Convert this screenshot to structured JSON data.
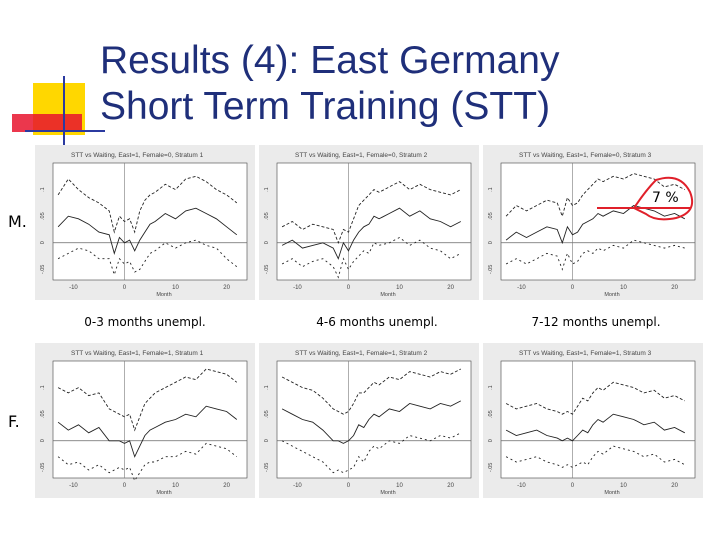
{
  "slide": {
    "title_line1": "Results (4): East Germany",
    "title_line2": "Short Term Training (STT)",
    "row_labels": [
      "M.",
      "F."
    ],
    "col_labels": [
      "0-3 months unempl.",
      "4-6 months unempl.",
      "7-12 months unempl."
    ],
    "annotation": "7 %",
    "colors": {
      "title": "#1f2f7a",
      "deco_yellow": "#ffd700",
      "deco_red": "#e8142e",
      "deco_blue": "#2b3aa0",
      "annotation_line": "#e0202a"
    }
  },
  "chart_data": [
    {
      "type": "line",
      "title": "STT vs Waiting, East=1, Female=0, Stratum 1",
      "xlabel": "Month",
      "ylabel": "",
      "xlim": [
        -14,
        24
      ],
      "ylim": [
        -0.07,
        0.15
      ],
      "yticks": [
        "-.05",
        "0",
        ".05",
        ".1"
      ],
      "xticks": [
        "-10",
        "0",
        "10",
        "20"
      ],
      "series": [
        {
          "x": [
            -13,
            -11,
            -9,
            -7,
            -5,
            -3,
            -2,
            -1,
            0,
            1,
            2,
            3,
            4,
            5,
            6,
            8,
            10,
            12,
            14,
            16,
            18,
            20,
            22
          ],
          "values": [
            0.03,
            0.05,
            0.045,
            0.035,
            0.02,
            0.015,
            -0.02,
            0.01,
            0.0,
            0.005,
            -0.015,
            0.005,
            0.02,
            0.035,
            0.04,
            0.055,
            0.045,
            0.06,
            0.065,
            0.055,
            0.045,
            0.03,
            0.015
          ]
        },
        {
          "x": [
            -13,
            -11,
            -9,
            -7,
            -5,
            -3,
            -2,
            -1,
            0,
            1,
            2,
            3,
            4,
            5,
            6,
            8,
            10,
            12,
            14,
            16,
            18,
            20,
            22
          ],
          "values": [
            0.09,
            0.12,
            0.1,
            0.085,
            0.075,
            0.06,
            0.02,
            0.05,
            0.04,
            0.045,
            0.02,
            0.06,
            0.08,
            0.09,
            0.095,
            0.11,
            0.1,
            0.12,
            0.125,
            0.115,
            0.1,
            0.09,
            0.075
          ]
        },
        {
          "x": [
            -13,
            -11,
            -9,
            -7,
            -5,
            -3,
            -2,
            -1,
            0,
            1,
            2,
            3,
            4,
            5,
            6,
            8,
            10,
            12,
            14,
            16,
            18,
            20,
            22
          ],
          "values": [
            -0.03,
            -0.02,
            -0.01,
            -0.015,
            -0.03,
            -0.03,
            -0.06,
            -0.03,
            -0.04,
            -0.035,
            -0.055,
            -0.05,
            -0.035,
            -0.02,
            -0.015,
            0.0,
            -0.01,
            0.0,
            0.005,
            -0.005,
            -0.01,
            -0.03,
            -0.045
          ]
        }
      ]
    },
    {
      "type": "line",
      "title": "STT vs Waiting, East=1, Female=0, Stratum 2",
      "xlabel": "Month",
      "ylabel": "",
      "xlim": [
        -14,
        24
      ],
      "ylim": [
        -0.07,
        0.15
      ],
      "yticks": [
        "-.05",
        "0",
        ".05",
        ".1"
      ],
      "xticks": [
        "-10",
        "0",
        "10",
        "20"
      ],
      "series": [
        {
          "x": [
            -13,
            -11,
            -9,
            -7,
            -5,
            -3,
            -2,
            -1,
            0,
            1,
            2,
            3,
            4,
            5,
            6,
            8,
            10,
            12,
            14,
            16,
            18,
            20,
            22
          ],
          "values": [
            -0.005,
            0.005,
            -0.01,
            -0.005,
            0.0,
            -0.01,
            -0.03,
            0.0,
            -0.015,
            0.005,
            0.02,
            0.03,
            0.035,
            0.05,
            0.045,
            0.055,
            0.065,
            0.05,
            0.06,
            0.045,
            0.04,
            0.03,
            0.04
          ]
        },
        {
          "x": [
            -13,
            -11,
            -9,
            -7,
            -5,
            -3,
            -2,
            -1,
            0,
            1,
            2,
            3,
            4,
            5,
            6,
            8,
            10,
            12,
            14,
            16,
            18,
            20,
            22
          ],
          "values": [
            0.03,
            0.04,
            0.025,
            0.035,
            0.03,
            0.025,
            0.0,
            0.025,
            0.02,
            0.045,
            0.07,
            0.08,
            0.09,
            0.1,
            0.095,
            0.105,
            0.115,
            0.1,
            0.11,
            0.1,
            0.095,
            0.09,
            0.1
          ]
        },
        {
          "x": [
            -13,
            -11,
            -9,
            -7,
            -5,
            -3,
            -2,
            -1,
            0,
            1,
            2,
            3,
            4,
            5,
            6,
            8,
            10,
            12,
            14,
            16,
            18,
            20,
            22
          ],
          "values": [
            -0.04,
            -0.03,
            -0.045,
            -0.035,
            -0.03,
            -0.045,
            -0.065,
            -0.03,
            -0.05,
            -0.035,
            -0.025,
            -0.015,
            -0.02,
            0.0,
            -0.005,
            0.0,
            0.01,
            -0.005,
            0.005,
            -0.01,
            -0.015,
            -0.03,
            -0.02
          ]
        }
      ]
    },
    {
      "type": "line",
      "title": "STT vs Waiting, East=1, Female=0, Stratum 3",
      "xlabel": "Month",
      "ylabel": "",
      "xlim": [
        -14,
        24
      ],
      "ylim": [
        -0.07,
        0.15
      ],
      "yticks": [
        "-.05",
        "0",
        ".05",
        ".1"
      ],
      "xticks": [
        "-10",
        "0",
        "10",
        "20"
      ],
      "series": [
        {
          "x": [
            -13,
            -11,
            -9,
            -7,
            -5,
            -3,
            -2,
            -1,
            0,
            1,
            2,
            3,
            4,
            5,
            6,
            8,
            10,
            12,
            14,
            16,
            18,
            20,
            22
          ],
          "values": [
            0.005,
            0.02,
            0.01,
            0.02,
            0.03,
            0.025,
            0.0,
            0.03,
            0.015,
            0.02,
            0.035,
            0.04,
            0.045,
            0.055,
            0.05,
            0.06,
            0.055,
            0.07,
            0.065,
            0.06,
            0.05,
            0.055,
            0.045
          ]
        },
        {
          "x": [
            -13,
            -11,
            -9,
            -7,
            -5,
            -3,
            -2,
            -1,
            0,
            1,
            2,
            3,
            4,
            5,
            6,
            8,
            10,
            12,
            14,
            16,
            18,
            20,
            22
          ],
          "values": [
            0.05,
            0.07,
            0.06,
            0.07,
            0.08,
            0.075,
            0.05,
            0.085,
            0.07,
            0.075,
            0.09,
            0.1,
            0.11,
            0.12,
            0.115,
            0.125,
            0.12,
            0.13,
            0.125,
            0.12,
            0.105,
            0.11,
            0.1
          ]
        },
        {
          "x": [
            -13,
            -11,
            -9,
            -7,
            -5,
            -3,
            -2,
            -1,
            0,
            1,
            2,
            3,
            4,
            5,
            6,
            8,
            10,
            12,
            14,
            16,
            18,
            20,
            22
          ],
          "values": [
            -0.04,
            -0.03,
            -0.04,
            -0.03,
            -0.02,
            -0.025,
            -0.05,
            -0.02,
            -0.04,
            -0.035,
            -0.02,
            -0.015,
            -0.02,
            -0.01,
            -0.015,
            -0.005,
            -0.01,
            0.005,
            0.0,
            -0.005,
            -0.01,
            -0.005,
            -0.01
          ]
        }
      ]
    },
    {
      "type": "line",
      "title": "STT vs Waiting, East=1, Female=1, Stratum 1",
      "xlabel": "Month",
      "ylabel": "",
      "xlim": [
        -14,
        24
      ],
      "ylim": [
        -0.07,
        0.15
      ],
      "yticks": [
        "-.05",
        "0",
        ".05",
        ".1"
      ],
      "xticks": [
        "-10",
        "0",
        "10",
        "20"
      ],
      "series": [
        {
          "x": [
            -13,
            -11,
            -9,
            -7,
            -5,
            -3,
            -2,
            -1,
            0,
            1,
            2,
            3,
            4,
            5,
            6,
            8,
            10,
            12,
            14,
            16,
            18,
            20,
            22
          ],
          "values": [
            0.035,
            0.02,
            0.03,
            0.015,
            0.025,
            0.0,
            0.0,
            0.0,
            -0.005,
            0.0,
            -0.03,
            -0.01,
            0.01,
            0.02,
            0.025,
            0.035,
            0.04,
            0.05,
            0.045,
            0.065,
            0.06,
            0.055,
            0.04
          ]
        },
        {
          "x": [
            -13,
            -11,
            -9,
            -7,
            -5,
            -3,
            -2,
            -1,
            0,
            1,
            2,
            3,
            4,
            5,
            6,
            8,
            10,
            12,
            14,
            16,
            18,
            20,
            22
          ],
          "values": [
            0.1,
            0.09,
            0.1,
            0.085,
            0.09,
            0.06,
            0.055,
            0.05,
            0.045,
            0.05,
            0.02,
            0.045,
            0.07,
            0.08,
            0.09,
            0.1,
            0.11,
            0.12,
            0.115,
            0.135,
            0.13,
            0.125,
            0.11
          ]
        },
        {
          "x": [
            -13,
            -11,
            -9,
            -7,
            -5,
            -3,
            -2,
            -1,
            0,
            1,
            2,
            3,
            4,
            5,
            6,
            8,
            10,
            12,
            14,
            16,
            18,
            20,
            22
          ],
          "values": [
            -0.03,
            -0.045,
            -0.04,
            -0.055,
            -0.045,
            -0.06,
            -0.055,
            -0.05,
            -0.055,
            -0.05,
            -0.075,
            -0.06,
            -0.045,
            -0.04,
            -0.04,
            -0.03,
            -0.03,
            -0.02,
            -0.025,
            -0.005,
            -0.01,
            -0.015,
            -0.03
          ]
        }
      ]
    },
    {
      "type": "line",
      "title": "STT vs Waiting, East=1, Female=1, Stratum 2",
      "xlabel": "Month",
      "ylabel": "",
      "xlim": [
        -14,
        24
      ],
      "ylim": [
        -0.07,
        0.15
      ],
      "yticks": [
        "-.05",
        "0",
        ".05",
        ".1"
      ],
      "xticks": [
        "-10",
        "0",
        "10",
        "20"
      ],
      "series": [
        {
          "x": [
            -13,
            -11,
            -9,
            -7,
            -5,
            -3,
            -2,
            -1,
            0,
            1,
            2,
            3,
            4,
            5,
            6,
            8,
            10,
            12,
            14,
            16,
            18,
            20,
            22
          ],
          "values": [
            0.06,
            0.05,
            0.04,
            0.035,
            0.02,
            0.0,
            0.0,
            -0.005,
            0.0,
            0.01,
            0.03,
            0.025,
            0.04,
            0.05,
            0.045,
            0.06,
            0.055,
            0.07,
            0.065,
            0.06,
            0.07,
            0.065,
            0.075
          ]
        },
        {
          "x": [
            -13,
            -11,
            -9,
            -7,
            -5,
            -3,
            -2,
            -1,
            0,
            1,
            2,
            3,
            4,
            5,
            6,
            8,
            10,
            12,
            14,
            16,
            18,
            20,
            22
          ],
          "values": [
            0.12,
            0.11,
            0.1,
            0.095,
            0.08,
            0.06,
            0.055,
            0.05,
            0.055,
            0.07,
            0.09,
            0.09,
            0.1,
            0.11,
            0.105,
            0.12,
            0.115,
            0.13,
            0.125,
            0.12,
            0.13,
            0.125,
            0.135
          ]
        },
        {
          "x": [
            -13,
            -11,
            -9,
            -7,
            -5,
            -3,
            -2,
            -1,
            0,
            1,
            2,
            3,
            4,
            5,
            6,
            8,
            10,
            12,
            14,
            16,
            18,
            20,
            22
          ],
          "values": [
            0.0,
            -0.01,
            -0.02,
            -0.03,
            -0.04,
            -0.06,
            -0.055,
            -0.06,
            -0.055,
            -0.05,
            -0.03,
            -0.04,
            -0.02,
            -0.01,
            -0.015,
            0.0,
            -0.005,
            0.01,
            0.005,
            0.0,
            0.01,
            0.005,
            0.015
          ]
        }
      ]
    },
    {
      "type": "line",
      "title": "STT vs Waiting, East=1, Female=1, Stratum 3",
      "xlabel": "Month",
      "ylabel": "",
      "xlim": [
        -14,
        24
      ],
      "ylim": [
        -0.07,
        0.15
      ],
      "yticks": [
        "-.05",
        "0",
        ".05",
        ".1"
      ],
      "xticks": [
        "-10",
        "0",
        "10",
        "20"
      ],
      "series": [
        {
          "x": [
            -13,
            -11,
            -9,
            -7,
            -5,
            -3,
            -2,
            -1,
            0,
            1,
            2,
            3,
            4,
            5,
            6,
            8,
            10,
            12,
            14,
            16,
            18,
            20,
            22
          ],
          "values": [
            0.02,
            0.01,
            0.015,
            0.02,
            0.01,
            0.005,
            0.0,
            0.005,
            0.0,
            0.01,
            0.02,
            0.015,
            0.03,
            0.04,
            0.035,
            0.05,
            0.045,
            0.04,
            0.03,
            0.035,
            0.02,
            0.025,
            0.015
          ]
        },
        {
          "x": [
            -13,
            -11,
            -9,
            -7,
            -5,
            -3,
            -2,
            -1,
            0,
            1,
            2,
            3,
            4,
            5,
            6,
            8,
            10,
            12,
            14,
            16,
            18,
            20,
            22
          ],
          "values": [
            0.07,
            0.06,
            0.065,
            0.07,
            0.06,
            0.055,
            0.05,
            0.055,
            0.05,
            0.065,
            0.08,
            0.075,
            0.09,
            0.1,
            0.095,
            0.11,
            0.105,
            0.1,
            0.09,
            0.095,
            0.08,
            0.085,
            0.075
          ]
        },
        {
          "x": [
            -13,
            -11,
            -9,
            -7,
            -5,
            -3,
            -2,
            -1,
            0,
            1,
            2,
            3,
            4,
            5,
            6,
            8,
            10,
            12,
            14,
            16,
            18,
            20,
            22
          ],
          "values": [
            -0.03,
            -0.04,
            -0.035,
            -0.03,
            -0.04,
            -0.045,
            -0.05,
            -0.045,
            -0.05,
            -0.045,
            -0.04,
            -0.045,
            -0.03,
            -0.02,
            -0.025,
            -0.01,
            -0.015,
            -0.02,
            -0.03,
            -0.025,
            -0.04,
            -0.035,
            -0.045
          ]
        }
      ]
    }
  ]
}
